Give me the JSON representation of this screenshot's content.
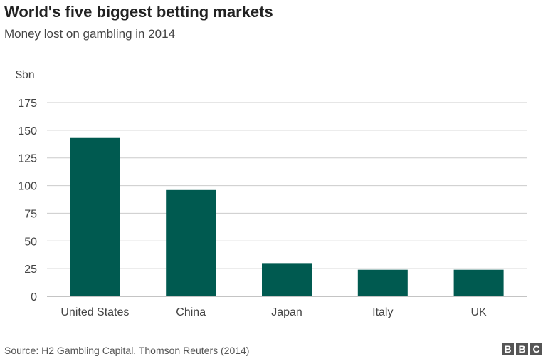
{
  "header": {
    "title": "World's five biggest betting markets",
    "subtitle": "Money lost on gambling in 2014"
  },
  "footer": {
    "source": "Source: H2 Gambling Capital, Thomson Reuters (2014)",
    "logo_letters": [
      "B",
      "B",
      "C"
    ]
  },
  "colors": {
    "bar": "#005a50",
    "grid": "#cccccc",
    "axis_text": "#444444"
  },
  "chart_data": {
    "type": "bar",
    "title": "World's five biggest betting markets",
    "subtitle": "Money lost on gambling in 2014",
    "ylabel": "$bn",
    "xlabel": "",
    "categories": [
      "United States",
      "China",
      "Japan",
      "Italy",
      "UK"
    ],
    "values": [
      143,
      96,
      30,
      24,
      24
    ],
    "ylim": [
      0,
      175
    ],
    "yticks": [
      0,
      25,
      50,
      75,
      100,
      125,
      150,
      175
    ],
    "grid": true,
    "legend": "none"
  }
}
